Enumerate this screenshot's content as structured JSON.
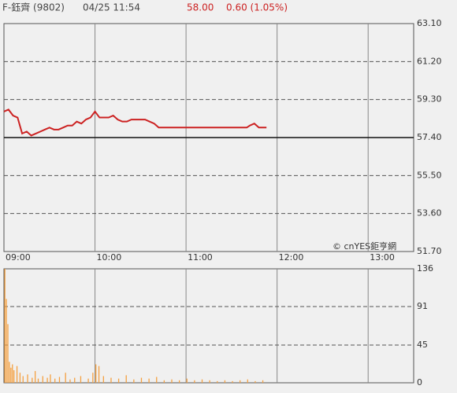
{
  "header": {
    "name": "F-鈺齊 (9802)",
    "datetime": "04/25 11:54",
    "price": "58.00",
    "change": "0.60 (1.05%)"
  },
  "credit": "© cnYES鉅亨網",
  "chart_data": [
    {
      "type": "line",
      "color": "#cc2222",
      "xlim": [
        0,
        270
      ],
      "xticks": [
        {
          "value": 0,
          "label": "09:00"
        },
        {
          "value": 60,
          "label": "10:00"
        },
        {
          "value": 120,
          "label": "11:00"
        },
        {
          "value": 180,
          "label": "12:00"
        },
        {
          "value": 240,
          "label": "13:00"
        }
      ],
      "ylim": [
        51.7,
        63.1
      ],
      "yticks": [
        {
          "value": 51.7,
          "label": "51.70"
        },
        {
          "value": 53.6,
          "label": "53.60"
        },
        {
          "value": 55.5,
          "label": "55.50"
        },
        {
          "value": 57.4,
          "label": "57.40"
        },
        {
          "value": 59.3,
          "label": "59.30"
        },
        {
          "value": 61.2,
          "label": "61.20"
        },
        {
          "value": 63.1,
          "label": "63.10"
        }
      ],
      "reference_line": 57.4,
      "grid": true,
      "x": [
        0,
        3,
        6,
        9,
        12,
        15,
        18,
        21,
        24,
        27,
        30,
        33,
        36,
        39,
        42,
        45,
        48,
        51,
        54,
        57,
        60,
        63,
        66,
        69,
        72,
        75,
        78,
        81,
        84,
        87,
        90,
        93,
        96,
        99,
        102,
        110,
        120,
        130,
        140,
        150,
        160,
        162,
        165,
        168,
        171,
        173
      ],
      "values": [
        58.7,
        58.8,
        58.5,
        58.4,
        57.6,
        57.7,
        57.5,
        57.6,
        57.7,
        57.8,
        57.9,
        57.8,
        57.8,
        57.9,
        58.0,
        58.0,
        58.2,
        58.1,
        58.3,
        58.4,
        58.7,
        58.4,
        58.4,
        58.4,
        58.5,
        58.3,
        58.2,
        58.2,
        58.3,
        58.3,
        58.3,
        58.3,
        58.2,
        58.1,
        57.9,
        57.9,
        57.9,
        57.9,
        57.9,
        57.9,
        57.9,
        58.0,
        58.1,
        57.9,
        57.9,
        57.9
      ]
    },
    {
      "type": "bar",
      "color": "#f5a040",
      "xlim": [
        0,
        270
      ],
      "ylim": [
        0,
        136
      ],
      "yticks": [
        0,
        45,
        91,
        136
      ],
      "grid": true,
      "x": [
        0,
        1,
        2,
        3,
        4,
        5,
        6,
        8,
        10,
        12,
        15,
        18,
        20,
        22,
        25,
        28,
        30,
        33,
        36,
        40,
        43,
        46,
        50,
        55,
        58,
        60,
        62,
        65,
        70,
        75,
        80,
        85,
        90,
        95,
        100,
        105,
        110,
        115,
        120,
        125,
        130,
        135,
        140,
        145,
        150,
        155,
        160,
        165,
        170
      ],
      "values": [
        136,
        100,
        70,
        25,
        18,
        22,
        15,
        20,
        12,
        8,
        10,
        6,
        14,
        5,
        8,
        6,
        10,
        5,
        7,
        12,
        4,
        6,
        8,
        5,
        12,
        22,
        20,
        8,
        6,
        5,
        9,
        4,
        6,
        5,
        7,
        3,
        4,
        3,
        5,
        3,
        4,
        3,
        2,
        3,
        2,
        3,
        4,
        2,
        3
      ]
    }
  ]
}
